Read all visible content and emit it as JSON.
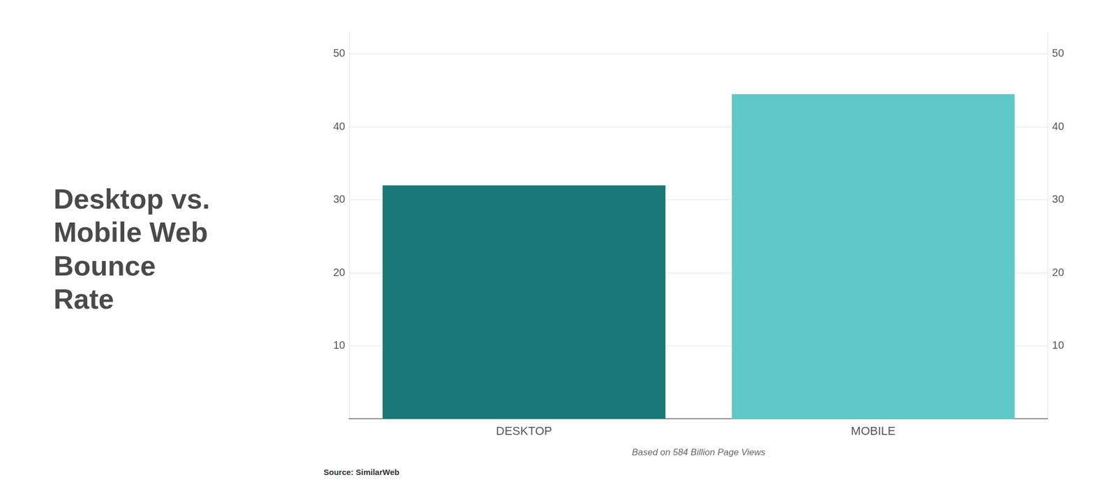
{
  "chart_data": {
    "type": "bar",
    "title": "Desktop vs.\nMobile Web\nBounce\nRate",
    "subtitle": "Based on 584 Billion Page Views",
    "annotations": [
      "Source: SimilarWeb"
    ],
    "categories": [
      "DESKTOP",
      "MOBILE"
    ],
    "values": [
      32,
      44.5
    ],
    "colors": [
      "#1a7878",
      "#5ec8c8"
    ],
    "ylim": [
      0,
      53
    ],
    "yticks": [
      10,
      20,
      30,
      40,
      50
    ],
    "y2lim": [
      0,
      53
    ],
    "y2ticks": [
      10,
      20,
      30,
      40,
      50
    ],
    "grid": true
  }
}
